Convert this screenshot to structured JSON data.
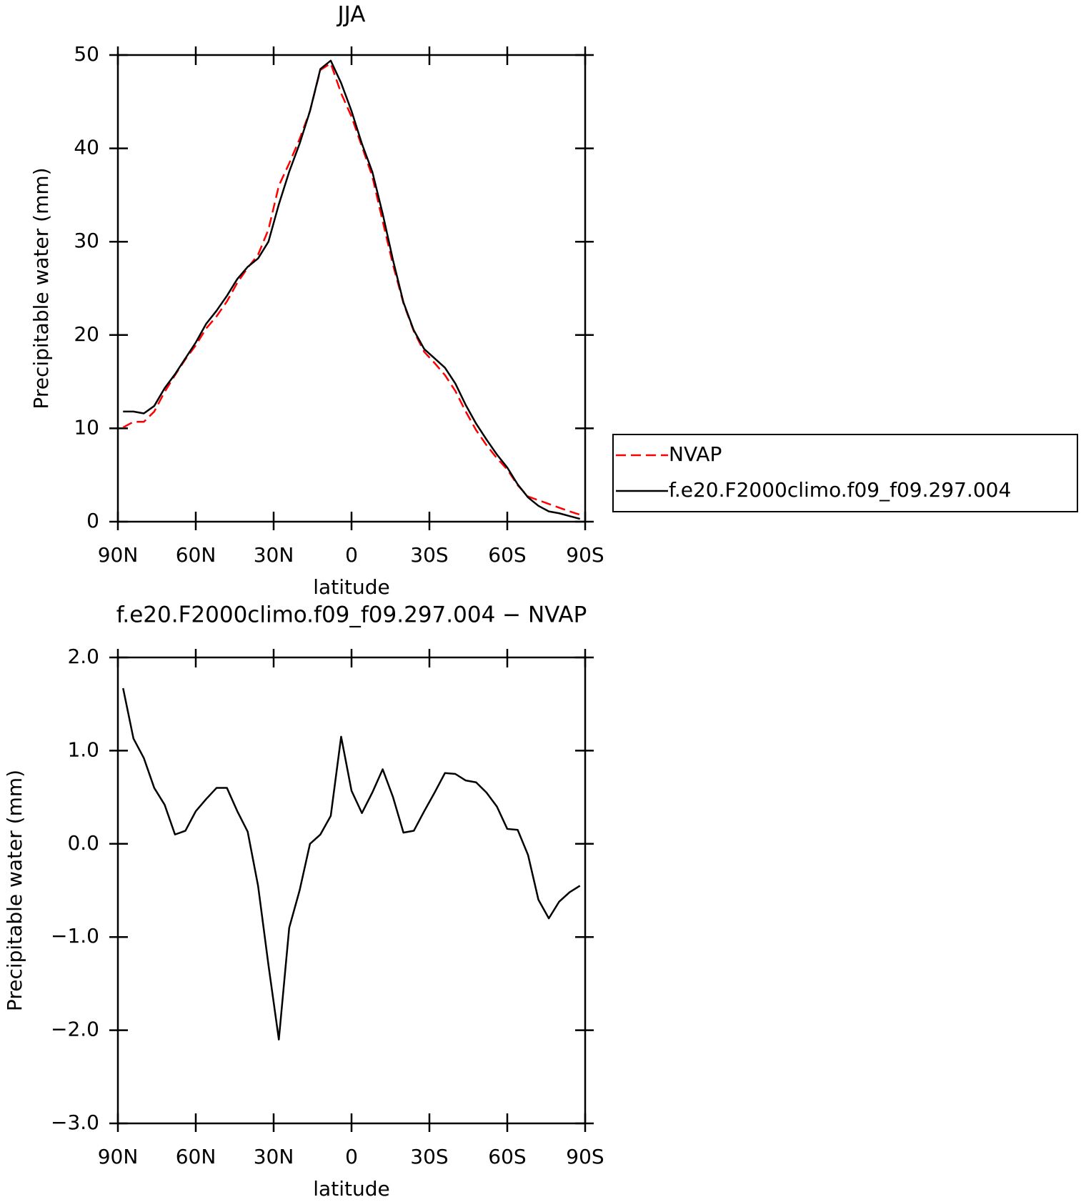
{
  "chart_data": [
    {
      "type": "line",
      "title": "JJA",
      "xlabel": "latitude",
      "ylabel": "Precipitable water (mm)",
      "x": [
        88,
        84,
        80,
        76,
        72,
        68,
        64,
        60,
        56,
        52,
        48,
        44,
        40,
        36,
        32,
        28,
        24,
        20,
        16,
        12,
        8,
        4,
        0,
        -4,
        -8,
        -12,
        -16,
        -20,
        -24,
        -28,
        -32,
        -36,
        -40,
        -44,
        -48,
        -52,
        -56,
        -60,
        -64,
        -68,
        -72,
        -76,
        -80,
        -84,
        -88
      ],
      "xlim": [
        90,
        -90
      ],
      "xticks": [
        {
          "value": 90,
          "label": "90N"
        },
        {
          "value": 60,
          "label": "60N"
        },
        {
          "value": 30,
          "label": "30N"
        },
        0,
        {
          "value": -30,
          "label": "30S"
        },
        {
          "value": -60,
          "label": "60S"
        },
        {
          "value": -90,
          "label": "90S"
        }
      ],
      "ylim": [
        0,
        50
      ],
      "yticks": [
        0,
        10,
        20,
        30,
        40,
        50
      ],
      "legend": "right",
      "series": [
        {
          "name": "NVAP",
          "color": "#ff0000",
          "dashed": true,
          "values": [
            10.1,
            10.7,
            10.7,
            11.8,
            13.9,
            15.7,
            17.4,
            18.9,
            20.7,
            22.0,
            23.6,
            25.6,
            27.2,
            28.6,
            31.3,
            36.0,
            38.4,
            41.0,
            44.0,
            48.4,
            49.1,
            45.9,
            43.4,
            40.2,
            37.0,
            32.2,
            27.5,
            23.4,
            20.4,
            18.2,
            17.0,
            15.7,
            14.0,
            11.8,
            9.8,
            8.2,
            6.8,
            5.6,
            3.9,
            2.7,
            2.3,
            1.9,
            1.5,
            1.1,
            0.75
          ]
        },
        {
          "name": "f.e20.F2000climo.f09_f09.297.004",
          "color": "#000000",
          "dashed": false,
          "values": [
            11.8,
            11.8,
            11.6,
            12.4,
            14.3,
            15.8,
            17.5,
            19.2,
            21.2,
            22.6,
            24.2,
            26.0,
            27.3,
            28.2,
            30.0,
            34.0,
            37.5,
            40.5,
            44.0,
            48.5,
            49.4,
            47.0,
            44.0,
            40.5,
            37.5,
            33.0,
            28.0,
            23.5,
            20.5,
            18.5,
            17.5,
            16.5,
            14.8,
            12.5,
            10.5,
            8.8,
            7.2,
            5.8,
            4.0,
            2.6,
            1.7,
            1.1,
            0.9,
            0.6,
            0.3
          ]
        }
      ]
    },
    {
      "type": "line",
      "title": "f.e20.F2000climo.f09_f09.297.004 − NVAP",
      "xlabel": "latitude",
      "ylabel": "Precipitable water (mm)",
      "x": [
        88,
        84,
        80,
        76,
        72,
        68,
        64,
        60,
        56,
        52,
        48,
        44,
        40,
        36,
        32,
        28,
        24,
        20,
        16,
        12,
        8,
        4,
        0,
        -4,
        -8,
        -12,
        -16,
        -20,
        -24,
        -28,
        -32,
        -36,
        -40,
        -44,
        -48,
        -52,
        -56,
        -60,
        -64,
        -68,
        -72,
        -76,
        -80,
        -84,
        -88
      ],
      "xlim": [
        90,
        -90
      ],
      "xticks": [
        {
          "value": 90,
          "label": "90N"
        },
        {
          "value": 60,
          "label": "60N"
        },
        {
          "value": 30,
          "label": "30N"
        },
        0,
        {
          "value": -30,
          "label": "30S"
        },
        {
          "value": -60,
          "label": "60S"
        },
        {
          "value": -90,
          "label": "90S"
        }
      ],
      "ylim": [
        -3,
        2
      ],
      "yticks": [
        {
          "value": -3,
          "label": "−3.0"
        },
        {
          "value": -2,
          "label": "−2.0"
        },
        {
          "value": -1,
          "label": "−1.0"
        },
        {
          "value": 0,
          "label": "0.0"
        },
        {
          "value": 1,
          "label": "1.0"
        },
        {
          "value": 2,
          "label": "2.0"
        }
      ],
      "series": [
        {
          "color": "#000000",
          "dashed": false,
          "values": [
            1.67,
            1.13,
            0.92,
            0.6,
            0.42,
            0.1,
            0.14,
            0.35,
            0.48,
            0.6,
            0.6,
            0.35,
            0.13,
            -0.45,
            -1.3,
            -2.1,
            -0.9,
            -0.5,
            0.0,
            0.1,
            0.3,
            1.15,
            0.57,
            0.33,
            0.55,
            0.8,
            0.5,
            0.12,
            0.14,
            0.35,
            0.55,
            0.76,
            0.75,
            0.68,
            0.66,
            0.55,
            0.4,
            0.16,
            0.15,
            -0.12,
            -0.6,
            -0.8,
            -0.62,
            -0.52,
            -0.45
          ]
        }
      ]
    }
  ]
}
